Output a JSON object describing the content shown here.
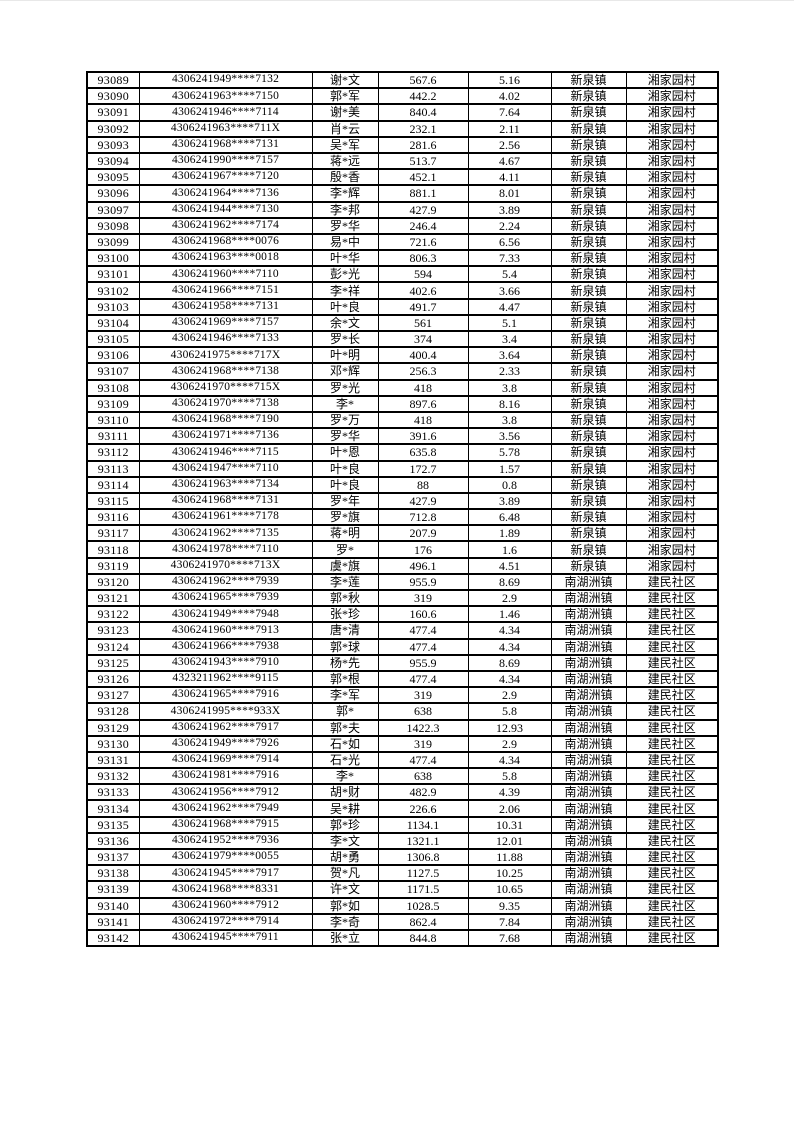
{
  "colors": {
    "page_background": "#ffffff",
    "text": "#000000",
    "table_border": "#000000"
  },
  "table": {
    "rows": [
      [
        "93089",
        "4306241949****7132",
        "谢*文",
        "567.6",
        "5.16",
        "新泉镇",
        "湘家园村"
      ],
      [
        "93090",
        "4306241963****7150",
        "郭*军",
        "442.2",
        "4.02",
        "新泉镇",
        "湘家园村"
      ],
      [
        "93091",
        "4306241946****7114",
        "谢*美",
        "840.4",
        "7.64",
        "新泉镇",
        "湘家园村"
      ],
      [
        "93092",
        "4306241963****711X",
        "肖*云",
        "232.1",
        "2.11",
        "新泉镇",
        "湘家园村"
      ],
      [
        "93093",
        "4306241968****7131",
        "吴*军",
        "281.6",
        "2.56",
        "新泉镇",
        "湘家园村"
      ],
      [
        "93094",
        "4306241990****7157",
        "蒋*远",
        "513.7",
        "4.67",
        "新泉镇",
        "湘家园村"
      ],
      [
        "93095",
        "4306241967****7120",
        "殷*香",
        "452.1",
        "4.11",
        "新泉镇",
        "湘家园村"
      ],
      [
        "93096",
        "4306241964****7136",
        "李*辉",
        "881.1",
        "8.01",
        "新泉镇",
        "湘家园村"
      ],
      [
        "93097",
        "4306241944****7130",
        "李*邦",
        "427.9",
        "3.89",
        "新泉镇",
        "湘家园村"
      ],
      [
        "93098",
        "4306241962****7174",
        "罗*华",
        "246.4",
        "2.24",
        "新泉镇",
        "湘家园村"
      ],
      [
        "93099",
        "4306241968****0076",
        "易*中",
        "721.6",
        "6.56",
        "新泉镇",
        "湘家园村"
      ],
      [
        "93100",
        "4306241963****0018",
        "叶*华",
        "806.3",
        "7.33",
        "新泉镇",
        "湘家园村"
      ],
      [
        "93101",
        "4306241960****7110",
        "彭*光",
        "594",
        "5.4",
        "新泉镇",
        "湘家园村"
      ],
      [
        "93102",
        "4306241966****7151",
        "李*祥",
        "402.6",
        "3.66",
        "新泉镇",
        "湘家园村"
      ],
      [
        "93103",
        "4306241958****7131",
        "叶*良",
        "491.7",
        "4.47",
        "新泉镇",
        "湘家园村"
      ],
      [
        "93104",
        "4306241969****7157",
        "余*文",
        "561",
        "5.1",
        "新泉镇",
        "湘家园村"
      ],
      [
        "93105",
        "4306241946****7133",
        "罗*长",
        "374",
        "3.4",
        "新泉镇",
        "湘家园村"
      ],
      [
        "93106",
        "4306241975****717X",
        "叶*明",
        "400.4",
        "3.64",
        "新泉镇",
        "湘家园村"
      ],
      [
        "93107",
        "4306241968****7138",
        "邓*辉",
        "256.3",
        "2.33",
        "新泉镇",
        "湘家园村"
      ],
      [
        "93108",
        "4306241970****715X",
        "罗*光",
        "418",
        "3.8",
        "新泉镇",
        "湘家园村"
      ],
      [
        "93109",
        "4306241970****7138",
        "李*",
        "897.6",
        "8.16",
        "新泉镇",
        "湘家园村"
      ],
      [
        "93110",
        "4306241968****7190",
        "罗*万",
        "418",
        "3.8",
        "新泉镇",
        "湘家园村"
      ],
      [
        "93111",
        "4306241971****7136",
        "罗*华",
        "391.6",
        "3.56",
        "新泉镇",
        "湘家园村"
      ],
      [
        "93112",
        "4306241946****7115",
        "叶*恩",
        "635.8",
        "5.78",
        "新泉镇",
        "湘家园村"
      ],
      [
        "93113",
        "4306241947****7110",
        "叶*良",
        "172.7",
        "1.57",
        "新泉镇",
        "湘家园村"
      ],
      [
        "93114",
        "4306241963****7134",
        "叶*良",
        "88",
        "0.8",
        "新泉镇",
        "湘家园村"
      ],
      [
        "93115",
        "4306241968****7131",
        "罗*年",
        "427.9",
        "3.89",
        "新泉镇",
        "湘家园村"
      ],
      [
        "93116",
        "4306241961****7178",
        "罗*旗",
        "712.8",
        "6.48",
        "新泉镇",
        "湘家园村"
      ],
      [
        "93117",
        "4306241962****7135",
        "蒋*明",
        "207.9",
        "1.89",
        "新泉镇",
        "湘家园村"
      ],
      [
        "93118",
        "4306241978****7110",
        "罗*",
        "176",
        "1.6",
        "新泉镇",
        "湘家园村"
      ],
      [
        "93119",
        "4306241970****713X",
        "虞*旗",
        "496.1",
        "4.51",
        "新泉镇",
        "湘家园村"
      ],
      [
        "93120",
        "4306241962****7939",
        "李*莲",
        "955.9",
        "8.69",
        "南湖洲镇",
        "建民社区"
      ],
      [
        "93121",
        "4306241965****7939",
        "郭*秋",
        "319",
        "2.9",
        "南湖洲镇",
        "建民社区"
      ],
      [
        "93122",
        "4306241949****7948",
        "张*珍",
        "160.6",
        "1.46",
        "南湖洲镇",
        "建民社区"
      ],
      [
        "93123",
        "4306241960****7913",
        "唐*清",
        "477.4",
        "4.34",
        "南湖洲镇",
        "建民社区"
      ],
      [
        "93124",
        "4306241966****7938",
        "郭*球",
        "477.4",
        "4.34",
        "南湖洲镇",
        "建民社区"
      ],
      [
        "93125",
        "4306241943****7910",
        "杨*先",
        "955.9",
        "8.69",
        "南湖洲镇",
        "建民社区"
      ],
      [
        "93126",
        "4323211962****9115",
        "郭*根",
        "477.4",
        "4.34",
        "南湖洲镇",
        "建民社区"
      ],
      [
        "93127",
        "4306241965****7916",
        "李*军",
        "319",
        "2.9",
        "南湖洲镇",
        "建民社区"
      ],
      [
        "93128",
        "4306241995****933X",
        "郭*",
        "638",
        "5.8",
        "南湖洲镇",
        "建民社区"
      ],
      [
        "93129",
        "4306241962****7917",
        "郭*夫",
        "1422.3",
        "12.93",
        "南湖洲镇",
        "建民社区"
      ],
      [
        "93130",
        "4306241949****7926",
        "石*如",
        "319",
        "2.9",
        "南湖洲镇",
        "建民社区"
      ],
      [
        "93131",
        "4306241969****7914",
        "石*光",
        "477.4",
        "4.34",
        "南湖洲镇",
        "建民社区"
      ],
      [
        "93132",
        "4306241981****7916",
        "李*",
        "638",
        "5.8",
        "南湖洲镇",
        "建民社区"
      ],
      [
        "93133",
        "4306241956****7912",
        "胡*财",
        "482.9",
        "4.39",
        "南湖洲镇",
        "建民社区"
      ],
      [
        "93134",
        "4306241962****7949",
        "吴*耕",
        "226.6",
        "2.06",
        "南湖洲镇",
        "建民社区"
      ],
      [
        "93135",
        "4306241968****7915",
        "郭*珍",
        "1134.1",
        "10.31",
        "南湖洲镇",
        "建民社区"
      ],
      [
        "93136",
        "4306241952****7936",
        "李*文",
        "1321.1",
        "12.01",
        "南湖洲镇",
        "建民社区"
      ],
      [
        "93137",
        "4306241979****0055",
        "胡*勇",
        "1306.8",
        "11.88",
        "南湖洲镇",
        "建民社区"
      ],
      [
        "93138",
        "4306241945****7917",
        "贺*凡",
        "1127.5",
        "10.25",
        "南湖洲镇",
        "建民社区"
      ],
      [
        "93139",
        "4306241968****8331",
        "许*文",
        "1171.5",
        "10.65",
        "南湖洲镇",
        "建民社区"
      ],
      [
        "93140",
        "4306241960****7912",
        "郭*如",
        "1028.5",
        "9.35",
        "南湖洲镇",
        "建民社区"
      ],
      [
        "93141",
        "4306241972****7914",
        "李*奇",
        "862.4",
        "7.84",
        "南湖洲镇",
        "建民社区"
      ],
      [
        "93142",
        "4306241945****7911",
        "张*立",
        "844.8",
        "7.68",
        "南湖洲镇",
        "建民社区"
      ]
    ]
  }
}
